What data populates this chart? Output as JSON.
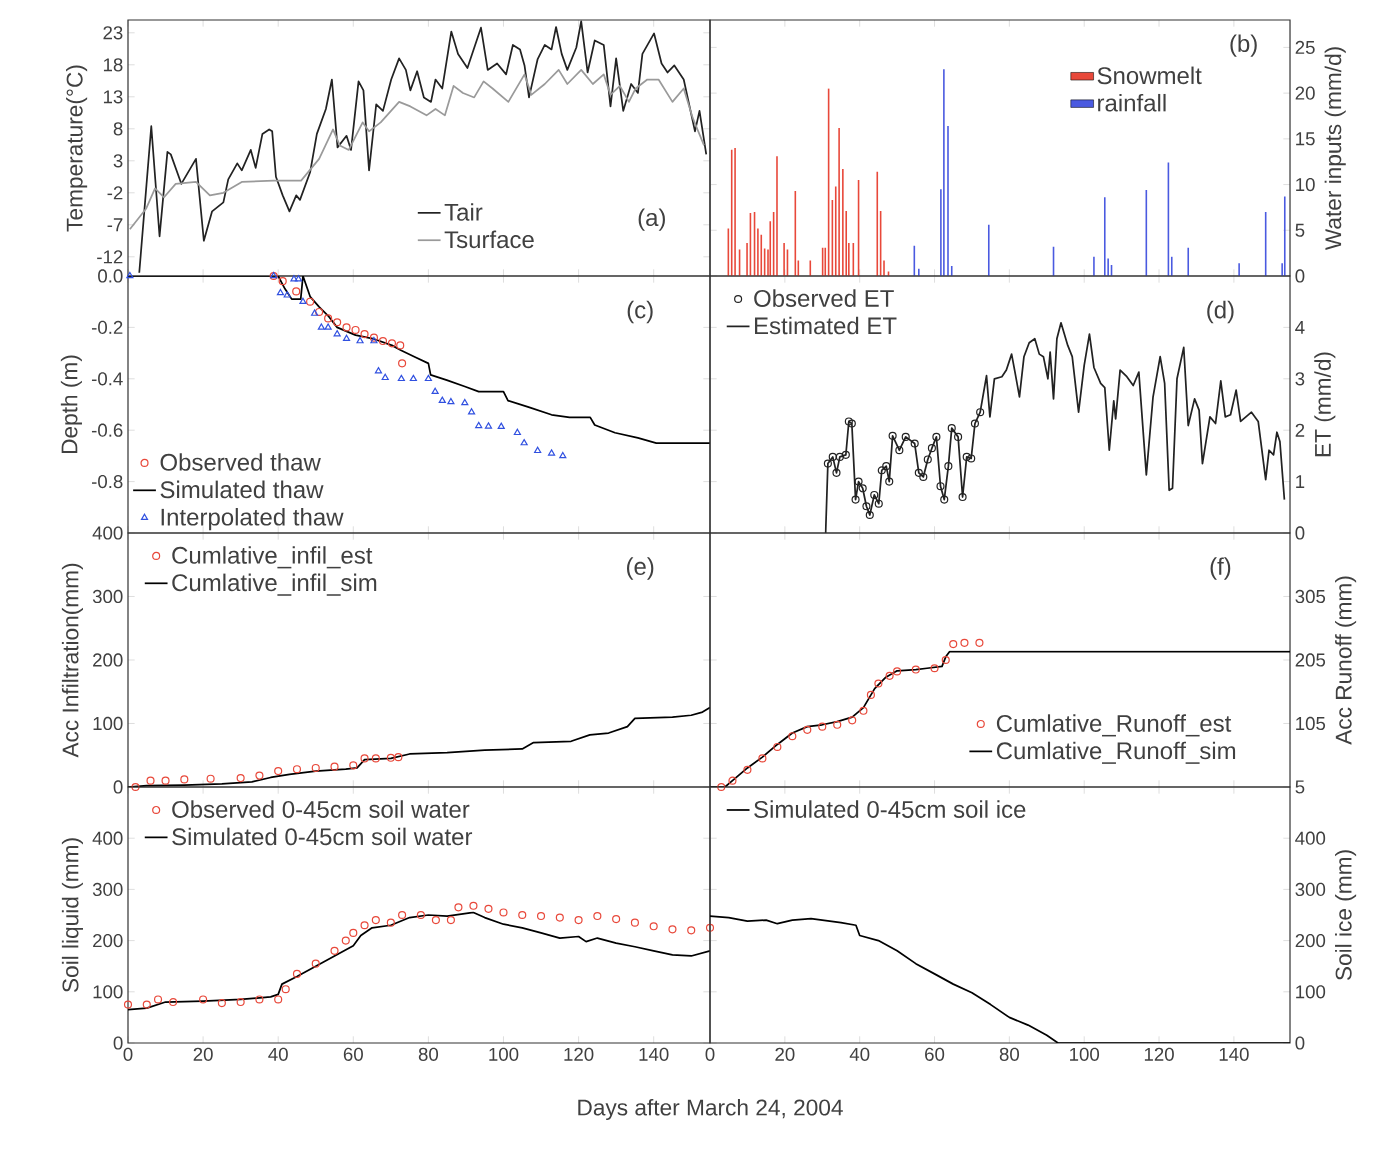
{
  "chart_data": [
    {
      "type": "line",
      "ylabel": "Temperature(°C)",
      "annotations": [
        "(a)"
      ],
      "xlim": [
        0,
        155
      ],
      "ylim": [
        -15,
        25
      ],
      "xticks": [
        0,
        20,
        40,
        60,
        80,
        100,
        120,
        140
      ],
      "yticks": [
        -12,
        -7,
        -2,
        3,
        8,
        13,
        18,
        23
      ],
      "tick_labels": "y",
      "legend": "bottom",
      "series": [
        {
          "name": "Tair",
          "type": "line",
          "color": "#222222",
          "x": [
            3,
            6.2,
            8.4,
            10.5,
            11.4,
            14.2,
            18.1,
            20.2,
            22.4,
            25.4,
            26.7,
            29.1,
            30.3,
            32.7,
            34,
            35.8,
            37.6,
            38.4,
            39.4,
            41.2,
            43,
            44.8,
            45.8,
            48.5,
            50.3,
            52.7,
            54.3,
            55.8,
            58.2,
            59.4,
            61.4,
            62.7,
            64.2,
            66.1,
            67.9,
            70.1,
            72.2,
            74,
            75.2,
            77,
            78.8,
            80.7,
            81.9,
            83.7,
            86.1,
            87.9,
            90.4,
            94,
            95.8,
            98.3,
            100.7,
            102.5,
            104.4,
            105.6,
            106.8,
            109.1,
            111,
            112.8,
            114,
            115.5,
            117,
            119.4,
            120.7,
            122.4,
            124.3,
            126.7,
            128.5,
            130,
            131.9,
            134,
            135.8,
            137,
            140.1,
            142.1,
            143.7,
            145.5,
            148,
            151,
            152.2,
            154
          ],
          "values": [
            -14.5,
            8.4,
            -8.8,
            4.4,
            4,
            -0.6,
            3.3,
            -9.5,
            -4.9,
            -3.5,
            0.1,
            2.6,
            1.5,
            4.7,
            1.9,
            7.2,
            7.9,
            7.6,
            0.5,
            -2.4,
            -4.9,
            -2.4,
            -3.1,
            1.2,
            7.2,
            11.1,
            15.7,
            5.1,
            6.9,
            4.7,
            15.4,
            14,
            1.5,
            11.8,
            10.8,
            15.7,
            19,
            17.2,
            14,
            17,
            12.9,
            12.2,
            15.7,
            14.3,
            23.2,
            19.7,
            17.5,
            23.8,
            17.2,
            18.2,
            16.5,
            21.1,
            20.4,
            17.9,
            12.9,
            18.9,
            21.1,
            20.4,
            23.9,
            19.7,
            17.2,
            20.7,
            24.8,
            16.8,
            21.8,
            21.1,
            11.5,
            19,
            10.8,
            15,
            13.6,
            19.7,
            22.9,
            18.2,
            16.8,
            17.9,
            15.7,
            7.6,
            10.8,
            4
          ]
        },
        {
          "name": "Tsurface",
          "type": "line",
          "color": "#9a9a9a",
          "x": [
            0.5,
            4.8,
            7.2,
            9.6,
            12.7,
            18.1,
            21.8,
            25.4,
            30.3,
            38.8,
            46.1,
            50.9,
            54.6,
            56.4,
            58.8,
            62.5,
            64.2,
            67.3,
            72.2,
            75.2,
            79.5,
            81.9,
            84.4,
            86.7,
            89.2,
            92.2,
            94.7,
            97.1,
            101.3,
            105.6,
            107.4,
            111,
            114.7,
            117,
            120.7,
            123.8,
            126.7,
            128.5,
            131,
            133.4,
            135.2,
            138.3,
            141.3,
            145,
            148,
            150.4,
            153.4
          ],
          "values": [
            -7.7,
            -4.5,
            -1.3,
            -2.7,
            -0.6,
            -0.3,
            -2.4,
            -2,
            -0.3,
            -0.1,
            -0.1,
            3.3,
            7.9,
            5.4,
            4.7,
            9,
            7.6,
            9,
            12.2,
            11.5,
            10.1,
            11.1,
            10.1,
            14.7,
            13.6,
            12.9,
            15.4,
            14.3,
            12.2,
            16.5,
            13.3,
            15,
            17.2,
            15,
            17.2,
            15,
            16.5,
            13.3,
            14.7,
            12.2,
            14.3,
            15.7,
            15.7,
            12.2,
            14.3,
            9.7,
            5.4
          ]
        }
      ]
    },
    {
      "type": "bar",
      "ylabel": "Water inputs (mm/d)",
      "annotations": [
        "(b)"
      ],
      "xlim": [
        0,
        155
      ],
      "ylim": [
        0,
        28
      ],
      "xticks": [
        0,
        20,
        40,
        60,
        80,
        100,
        120,
        140
      ],
      "yticks": [
        0,
        5,
        10,
        15,
        20,
        25
      ],
      "tick_labels": "y",
      "legend": "top right",
      "series": [
        {
          "name": "Snowmelt",
          "color": "#e8483a",
          "x": [
            4.9,
            5.8,
            6.7,
            7.9,
            9.9,
            10.8,
            11.9,
            12.8,
            13.7,
            14.6,
            15.5,
            16.1,
            17,
            17.9,
            19.8,
            20.7,
            22.8,
            23.6,
            26.8,
            30.1,
            30.8,
            31.7,
            32.7,
            33.6,
            34.5,
            35.5,
            36.4,
            37.1,
            38.3,
            39.7,
            44.7,
            45.6,
            46.5,
            47.7
          ],
          "values": [
            5.2,
            13.8,
            14,
            2.9,
            3.6,
            6.9,
            7,
            5.2,
            4.5,
            3,
            2.9,
            6,
            7,
            13.1,
            3.6,
            2.9,
            9.3,
            1.7,
            1.7,
            3.1,
            3.1,
            20.5,
            8.3,
            9.8,
            16.2,
            11.7,
            7.1,
            3.6,
            3.6,
            10.5,
            11.4,
            7.1,
            1.7,
            0.5
          ]
        },
        {
          "name": "rainfall",
          "color": "#4a5ae0",
          "x": [
            54.6,
            55.8,
            61.7,
            62.5,
            63.6,
            64.6,
            74.5,
            91.8,
            102.6,
            105.5,
            106.4,
            107.3,
            116.6,
            122.5,
            123.4,
            127.8,
            141.4,
            148.5,
            152.9,
            153.6
          ],
          "values": [
            3.3,
            0.8,
            9.5,
            22.6,
            16.4,
            1.1,
            5.6,
            3.2,
            2.1,
            8.6,
            1.9,
            1.2,
            9.4,
            12.4,
            2.1,
            3.1,
            1.4,
            7,
            1.4,
            8.7
          ]
        }
      ]
    },
    {
      "type": "line",
      "ylabel": "Depth (m)",
      "annotations": [
        "(c)"
      ],
      "xlim": [
        0,
        155
      ],
      "ylim": [
        -1,
        0
      ],
      "xticks": [
        0,
        20,
        40,
        60,
        80,
        100,
        120,
        140
      ],
      "yticks": [
        {
          "value": 0,
          "label": "0.0"
        },
        -0.2,
        -0.4,
        -0.6,
        -0.8
      ],
      "tick_labels": "y",
      "legend": "bottom left",
      "series": [
        {
          "name": "Observed thaw",
          "type": "scatter",
          "marker": "circle",
          "color": "#e8483a",
          "x": [
            38.8,
            41.2,
            44.8,
            48.5,
            50.9,
            53.3,
            55.7,
            58.2,
            60.6,
            63,
            65.5,
            67.9,
            70.3,
            72.5,
            73
          ],
          "values": [
            0,
            -0.02,
            -0.06,
            -0.1,
            -0.14,
            -0.165,
            -0.18,
            -0.2,
            -0.21,
            -0.226,
            -0.24,
            -0.253,
            -0.262,
            -0.27,
            -0.34
          ]
        },
        {
          "name": "Simulated thaw",
          "type": "line",
          "color": "#000000",
          "x": [
            0,
            40,
            41.8,
            43.6,
            46,
            46.6,
            48.5,
            50.9,
            53.3,
            55.7,
            60.6,
            65.5,
            70.3,
            72.8,
            76.4,
            80,
            80.6,
            84.9,
            89.7,
            93.4,
            100,
            101.2,
            106.7,
            112.8,
            117.6,
            123.1,
            124.3,
            129.7,
            135.8,
            140.7,
            155
          ],
          "values": [
            0,
            0,
            -0.05,
            -0.09,
            -0.09,
            0,
            -0.08,
            -0.12,
            -0.155,
            -0.2,
            -0.23,
            -0.245,
            -0.27,
            -0.29,
            -0.315,
            -0.34,
            -0.385,
            -0.405,
            -0.43,
            -0.45,
            -0.45,
            -0.485,
            -0.51,
            -0.54,
            -0.55,
            -0.55,
            -0.58,
            -0.61,
            -0.63,
            -0.65,
            -0.65
          ]
        },
        {
          "name": "Interpolated thaw",
          "type": "scatter",
          "marker": "triangle",
          "color": "#3050e0",
          "x": [
            0.5,
            38.8,
            40.6,
            42.4,
            44.2,
            45.4,
            46.6,
            49.7,
            51.5,
            53.3,
            55.7,
            58.2,
            61.8,
            65.5,
            66.7,
            68.5,
            72.8,
            76,
            80,
            81.8,
            83.7,
            86,
            89.7,
            91.5,
            93.4,
            96,
            99.4,
            103.7,
            105.5,
            109.1,
            112.8,
            115.8
          ],
          "values": [
            0,
            0,
            -0.066,
            -0.075,
            -0.012,
            -0.012,
            -0.1,
            -0.146,
            -0.2,
            -0.2,
            -0.226,
            -0.244,
            -0.253,
            -0.253,
            -0.37,
            -0.396,
            -0.4,
            -0.4,
            -0.4,
            -0.45,
            -0.485,
            -0.49,
            -0.494,
            -0.53,
            -0.583,
            -0.585,
            -0.586,
            -0.61,
            -0.65,
            -0.68,
            -0.69,
            -0.7
          ]
        }
      ]
    },
    {
      "type": "line",
      "ylabel": "ET (mm/d)",
      "annotations": [
        "(d)"
      ],
      "xlim": [
        0,
        155
      ],
      "ylim": [
        0,
        5
      ],
      "xticks": [
        0,
        20,
        40,
        60,
        80,
        100,
        120,
        140
      ],
      "yticks": [
        0,
        1,
        2,
        3,
        4
      ],
      "tick_labels": "y",
      "legend": "top left",
      "series": [
        {
          "name": "Observed ET",
          "type": "scatter",
          "marker": "circle",
          "color": "#222222",
          "x": [
            31.5,
            32.8,
            33.8,
            34.7,
            36.3,
            37.1,
            37.9,
            38.9,
            39.7,
            40.8,
            41.8,
            42.7,
            43.9,
            45.1,
            45.9,
            47.1,
            47.9,
            48.8,
            50.6,
            52.3,
            54.7,
            55.8,
            57,
            58.2,
            59.3,
            60.5,
            61.6,
            62.6,
            63.7,
            64.6,
            66.3,
            67.5,
            68.6,
            69.8,
            70.8,
            72.2
          ],
          "values": [
            1.35,
            1.48,
            1.17,
            1.48,
            1.52,
            2.17,
            2.13,
            0.65,
            1.0,
            0.87,
            0.52,
            0.35,
            0.74,
            0.57,
            1.22,
            1.3,
            1.0,
            1.89,
            1.61,
            1.87,
            1.74,
            1.17,
            1.09,
            1.43,
            1.65,
            1.87,
            0.91,
            0.65,
            1.3,
            2.04,
            1.87,
            0.7,
            1.48,
            1.45,
            2.13,
            2.35
          ]
        },
        {
          "name": "Estimated ET",
          "type": "line",
          "color": "#222222",
          "x": [
            30.9,
            31.5,
            32.8,
            33.8,
            34.7,
            36.3,
            37.1,
            37.9,
            38.9,
            39.7,
            40.8,
            41.8,
            42.7,
            43.9,
            45.1,
            45.9,
            47.1,
            47.9,
            48.8,
            50.6,
            52.3,
            54.7,
            55.8,
            57,
            58.2,
            59.3,
            60.5,
            61.6,
            62.6,
            63.7,
            64.6,
            66.3,
            67.5,
            68.6,
            69.8,
            70.8,
            72.2,
            73.9,
            74.8,
            76,
            78,
            79.2,
            80.6,
            81.5,
            82.7,
            83.9,
            85.3,
            86.8,
            88,
            89.1,
            90.3,
            90.9,
            91.8,
            92.7,
            93.8,
            95.6,
            96.8,
            98.5,
            100,
            101.4,
            102.6,
            104.4,
            105.5,
            106.7,
            107.9,
            108.4,
            109.6,
            111.4,
            113.1,
            114.6,
            116.6,
            118.4,
            120.3,
            121.5,
            122.7,
            123.6,
            124.8,
            126.6,
            127.8,
            129.5,
            130.7,
            131.6,
            133.6,
            135.1,
            136.5,
            137.7,
            139.1,
            140.6,
            141.8,
            144.7,
            146.5,
            148.5,
            149.4,
            150.6,
            151.5,
            152.3,
            153.5
          ],
          "values": [
            0,
            1.35,
            1.48,
            1.17,
            1.48,
            1.52,
            2.17,
            2.13,
            0.65,
            1.0,
            0.87,
            0.52,
            0.35,
            0.74,
            0.57,
            1.22,
            1.3,
            1.0,
            1.89,
            1.61,
            1.87,
            1.74,
            1.17,
            1.09,
            1.43,
            1.65,
            1.87,
            0.91,
            0.65,
            1.3,
            2.04,
            1.87,
            0.7,
            1.48,
            1.45,
            2.13,
            2.35,
            3.06,
            2.26,
            3.0,
            3.04,
            3.17,
            3.48,
            3.13,
            2.65,
            3.43,
            3.7,
            3.78,
            3.48,
            3.43,
            3.0,
            3.52,
            2.61,
            3.78,
            4.09,
            3.65,
            3.43,
            2.35,
            3.26,
            3.87,
            3.22,
            2.91,
            2.83,
            1.61,
            2.57,
            2.22,
            3.17,
            3.04,
            2.87,
            3.13,
            1.13,
            2.65,
            3.43,
            2.91,
            0.83,
            0.87,
            3.0,
            3.61,
            2.09,
            2.61,
            2.39,
            1.35,
            2.26,
            2.13,
            2.96,
            2.26,
            2.3,
            2.78,
            2.17,
            2.35,
            2.17,
            1.04,
            1.61,
            1.52,
            1.96,
            1.78,
            0.65
          ]
        }
      ]
    },
    {
      "type": "line",
      "ylabel": "Acc Infiltration(mm)",
      "annotations": [
        "(e)"
      ],
      "xlim": [
        0,
        155
      ],
      "ylim": [
        0,
        400
      ],
      "xticks": [
        0,
        20,
        40,
        60,
        80,
        100,
        120,
        140
      ],
      "yticks": [
        0,
        100,
        200,
        300,
        400
      ],
      "tick_labels": "y",
      "legend": "top left",
      "series": [
        {
          "name": "Cumlative_infil_est",
          "type": "scatter",
          "marker": "circle",
          "color": "#e8483a",
          "x": [
            2,
            6,
            10,
            15,
            22,
            30,
            35,
            40,
            45,
            50,
            55,
            60,
            63,
            66,
            70,
            72
          ],
          "values": [
            0,
            10,
            10,
            12,
            13,
            14,
            18,
            25,
            28,
            30,
            32,
            34,
            45,
            45,
            46,
            47
          ]
        },
        {
          "name": "Cumlative_infil_sim",
          "type": "line",
          "color": "#000000",
          "x": [
            0,
            5,
            15,
            25,
            33,
            38,
            43,
            50,
            58,
            61,
            63,
            70,
            75,
            85,
            95,
            105,
            108,
            118,
            123,
            128,
            133,
            135,
            145,
            150,
            153,
            155
          ],
          "values": [
            0,
            2,
            3,
            5,
            8,
            15,
            20,
            25,
            28,
            30,
            43,
            45,
            52,
            54,
            58,
            60,
            70,
            72,
            82,
            85,
            95,
            108,
            110,
            113,
            118,
            125
          ]
        }
      ]
    },
    {
      "type": "line",
      "ylabel": "Acc Runoff (mm)",
      "annotations": [
        "(f)"
      ],
      "xlim": [
        0,
        155
      ],
      "ylim": [
        5,
        405
      ],
      "xticks": [
        0,
        20,
        40,
        60,
        80,
        100,
        120,
        140
      ],
      "yticks": [
        5,
        105,
        205,
        305
      ],
      "tick_labels": "y",
      "legend": "bottom right",
      "series": [
        {
          "name": "Cumlative_Runoff_est",
          "type": "scatter",
          "marker": "circle",
          "color": "#e8483a",
          "x": [
            3,
            6,
            10,
            14,
            18,
            22,
            26,
            30,
            34,
            38,
            41,
            43,
            45,
            48,
            50,
            55,
            60,
            63,
            65,
            68,
            72
          ],
          "values": [
            5,
            15,
            32,
            50,
            68,
            85,
            95,
            100,
            103,
            110,
            125,
            150,
            168,
            180,
            187,
            190,
            192,
            205,
            230,
            232,
            232
          ]
        },
        {
          "name": "Cumlative_Runoff_sim",
          "type": "line",
          "color": "#000000",
          "x": [
            0,
            4,
            6,
            10,
            14,
            18,
            22,
            26,
            30,
            34,
            38,
            41,
            44,
            47,
            50,
            55,
            58,
            62,
            63,
            64,
            155
          ],
          "values": [
            5,
            5,
            15,
            35,
            52,
            72,
            90,
            100,
            103,
            108,
            115,
            130,
            160,
            178,
            188,
            190,
            192,
            195,
            210,
            218,
            218
          ]
        }
      ]
    },
    {
      "type": "line",
      "ylabel": "Soil liquid (mm)",
      "xlabel": "Days after March 24, 2004",
      "xlim": [
        0,
        155
      ],
      "ylim": [
        0,
        500
      ],
      "xticks": [
        0,
        20,
        40,
        60,
        80,
        100,
        120,
        140
      ],
      "yticks": [
        0,
        100,
        200,
        300,
        400
      ],
      "legend": "top left",
      "series": [
        {
          "name": "Observed 0-45cm soil water",
          "type": "scatter",
          "marker": "circle",
          "color": "#e8483a",
          "x": [
            0,
            5,
            8,
            12,
            20,
            25,
            30,
            35,
            40,
            42,
            45,
            50,
            55,
            58,
            60,
            63,
            66,
            70,
            73,
            78,
            82,
            86,
            88,
            92,
            96,
            100,
            105,
            110,
            115,
            120,
            125,
            130,
            135,
            140,
            145,
            150,
            155
          ],
          "values": [
            75,
            75,
            85,
            80,
            85,
            78,
            80,
            85,
            85,
            105,
            135,
            155,
            180,
            200,
            215,
            230,
            240,
            235,
            250,
            250,
            240,
            240,
            265,
            268,
            262,
            255,
            250,
            248,
            245,
            240,
            248,
            242,
            235,
            228,
            222,
            220,
            225
          ]
        },
        {
          "name": "Simulated 0-45cm soil water",
          "type": "line",
          "color": "#000000",
          "x": [
            0,
            5,
            10,
            20,
            30,
            38,
            40,
            41,
            45,
            50,
            55,
            60,
            62,
            65,
            70,
            75,
            80,
            85,
            92,
            95,
            100,
            105,
            110,
            115,
            120,
            122,
            125,
            130,
            135,
            140,
            145,
            150,
            155
          ],
          "values": [
            65,
            68,
            80,
            82,
            85,
            90,
            95,
            115,
            130,
            150,
            170,
            190,
            210,
            225,
            230,
            245,
            250,
            248,
            255,
            245,
            232,
            225,
            215,
            205,
            208,
            198,
            205,
            195,
            188,
            180,
            172,
            170,
            180
          ]
        }
      ]
    },
    {
      "type": "line",
      "ylabel": "Soil ice (mm)",
      "xlim": [
        0,
        155
      ],
      "ylim": [
        0,
        500
      ],
      "xticks": [
        0,
        20,
        40,
        60,
        80,
        100,
        120,
        140
      ],
      "yticks": [
        0,
        100,
        200,
        300,
        400
      ],
      "legend": "top left",
      "series": [
        {
          "name": "Simulated 0-45cm soil ice",
          "type": "line",
          "color": "#000000",
          "x": [
            0,
            5,
            10,
            15,
            18,
            22,
            27,
            32,
            35,
            39,
            40,
            45,
            50,
            55,
            60,
            65,
            70,
            75,
            80,
            85,
            90,
            93,
            155
          ],
          "values": [
            248,
            245,
            238,
            240,
            233,
            240,
            243,
            238,
            235,
            230,
            210,
            200,
            180,
            155,
            135,
            115,
            98,
            75,
            50,
            35,
            15,
            0,
            0
          ]
        }
      ]
    }
  ]
}
